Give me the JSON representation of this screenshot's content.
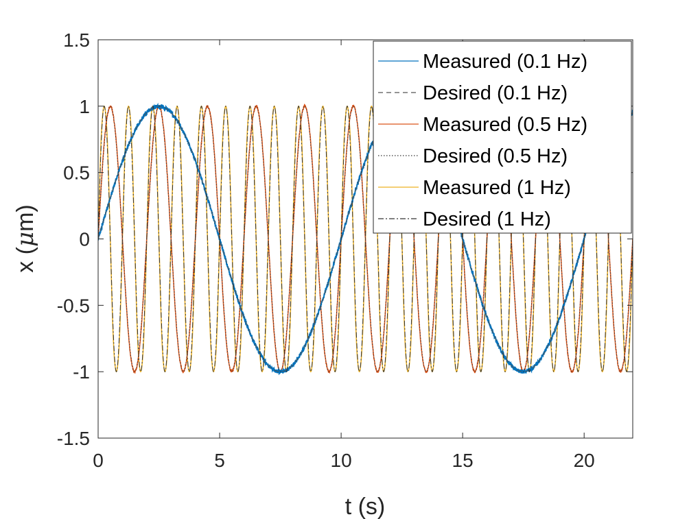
{
  "chart_data": {
    "type": "line",
    "xlabel": "t (s)",
    "ylabel_main": "x (",
    "ylabel_mu": "μ",
    "ylabel_unit": "m)",
    "xlim": [
      0,
      22
    ],
    "ylim": [
      -1.5,
      1.5
    ],
    "x_ticks": [
      0,
      5,
      10,
      15,
      20
    ],
    "x_tick_labels": [
      "0",
      "5",
      "10",
      "15",
      "20"
    ],
    "y_ticks": [
      -1.5,
      -1,
      -0.5,
      0,
      0.5,
      1,
      1.5
    ],
    "y_tick_labels": [
      "-1.5",
      "-1",
      "-0.5",
      "0",
      "0.5",
      "1",
      "1.5"
    ],
    "grid": false,
    "legend_position": "top-right",
    "series": [
      {
        "name": "Measured (0.1 Hz)",
        "frequency_hz": 0.1,
        "amplitude": 1.0,
        "overshoot_peak": 1.0,
        "noise": 0.015,
        "color": "#0072BD",
        "dash": "solid"
      },
      {
        "name": "Desired (0.1 Hz)",
        "frequency_hz": 0.1,
        "amplitude": 1.0,
        "color": "#555555",
        "dash": "dashed"
      },
      {
        "name": "Measured (0.5 Hz)",
        "frequency_hz": 0.5,
        "amplitude": 1.0,
        "overshoot_peak": 1.03,
        "noise": 0.01,
        "color": "#D95319",
        "dash": "solid"
      },
      {
        "name": "Desired (0.5 Hz)",
        "frequency_hz": 0.5,
        "amplitude": 1.0,
        "color": "#333333",
        "dash": "dotted"
      },
      {
        "name": "Measured (1 Hz)",
        "frequency_hz": 1.0,
        "amplitude": 1.0,
        "overshoot_peak": 1.09,
        "noise": 0.0,
        "color": "#EDB120",
        "dash": "solid"
      },
      {
        "name": "Desired (1 Hz)",
        "frequency_hz": 1.0,
        "amplitude": 1.0,
        "color": "#333333",
        "dash": "dashdot"
      }
    ]
  }
}
